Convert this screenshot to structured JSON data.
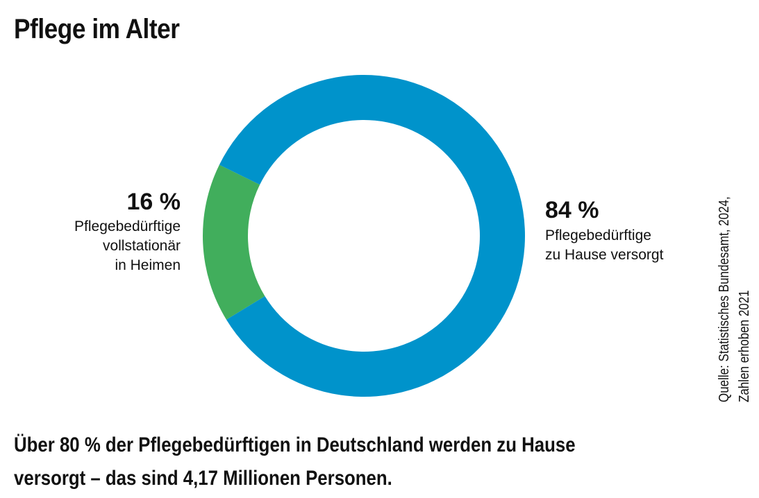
{
  "chart_data": {
    "type": "donut",
    "title": "Pflege im Alter",
    "categories": [
      "Pflegebedürftige\nvollstationär\nin Heimen",
      "Pflegebedürftige\nzu Hause versorgt"
    ],
    "values": [
      16,
      84
    ],
    "value_labels": [
      "16 %",
      "84 %"
    ],
    "colors": [
      "#41ae5c",
      "#0093cb"
    ],
    "caption": "Über 80 % der Pflegebedürftigen in Deutschland werden zu Hause\nversorgt – das sind 4,17 Millionen Personen.",
    "source": "Quelle: Statistisches Bundesamt, 2024,\nZahlen erhoben 2021"
  }
}
